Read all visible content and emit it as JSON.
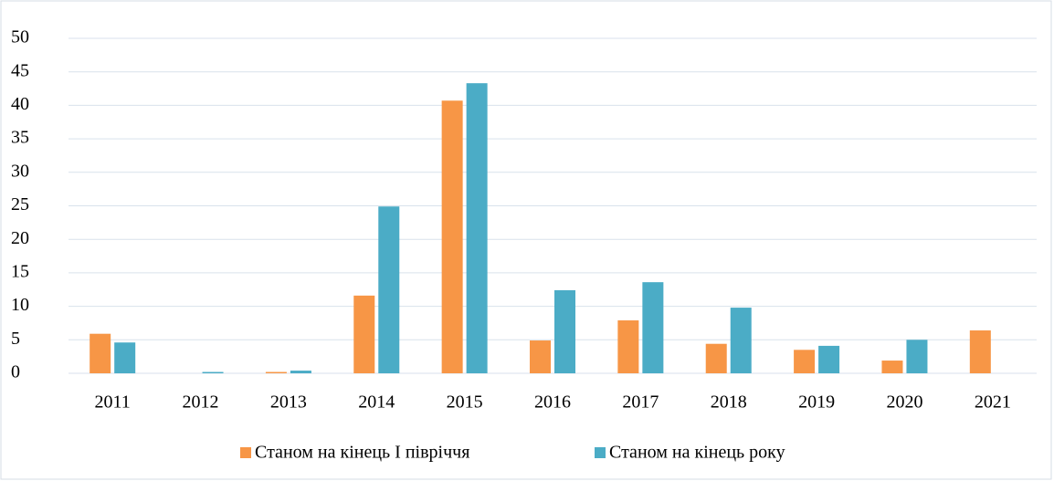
{
  "chart_data": {
    "type": "bar",
    "categories": [
      "2011",
      "2012",
      "2013",
      "2014",
      "2015",
      "2016",
      "2017",
      "2018",
      "2019",
      "2020",
      "2021"
    ],
    "series": [
      {
        "name": "Станом на кінець І півріччя",
        "color": "#f79646",
        "values": [
          5.9,
          0,
          0.2,
          11.6,
          40.7,
          4.9,
          7.9,
          4.4,
          3.5,
          1.9,
          6.4
        ]
      },
      {
        "name": "Станом на кінець року",
        "color": "#4bacc6",
        "values": [
          4.6,
          0.2,
          0.4,
          24.9,
          43.3,
          12.4,
          13.6,
          9.8,
          4.1,
          5.0,
          0
        ]
      }
    ],
    "ylim": [
      0,
      50
    ],
    "yticks": [
      0,
      5,
      10,
      15,
      20,
      25,
      30,
      35,
      40,
      45,
      50
    ],
    "grid": true,
    "legend": "bottom"
  }
}
